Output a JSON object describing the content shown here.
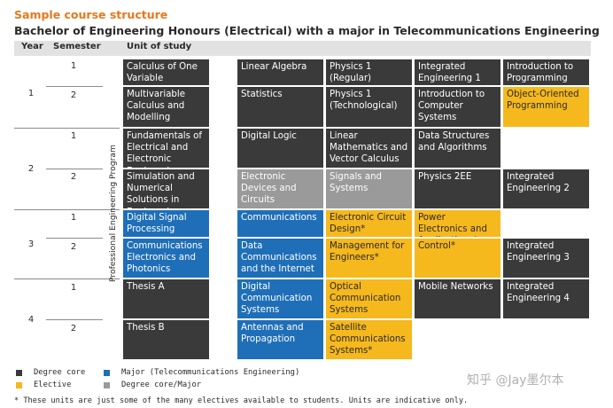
{
  "heading": "Sample course structure",
  "title": "Bachelor of Engineering Honours (Electrical) with a major in Telecommunications Engineering",
  "columns": {
    "year": "Year",
    "semester": "Semester",
    "unit": "Unit of study"
  },
  "years": [
    "1",
    "2",
    "3",
    "4"
  ],
  "semesters": [
    "1",
    "2",
    "1",
    "2",
    "1",
    "2",
    "1",
    "2"
  ],
  "side_label": "Professional Engineering Program",
  "colors": {
    "core": "#3a3a3a",
    "major": "#1f6fb8",
    "elective": "#f5b81d",
    "core_major": "#9a9a9a",
    "accent": "#e8771b"
  },
  "grid": [
    [
      {
        "text": "Calculus of One Variable",
        "type": "core"
      },
      {
        "text": "Linear Algebra",
        "type": "core"
      },
      {
        "text": "Physics 1 (Regular)",
        "type": "core"
      },
      {
        "text": "Integrated Engineering 1",
        "type": "core"
      },
      {
        "text": "Introduction to Programming",
        "type": "core"
      }
    ],
    [
      {
        "text": "Multivariable Calculus and Modelling",
        "type": "core"
      },
      {
        "text": "Statistics",
        "type": "core"
      },
      {
        "text": "Physics 1 (Technological)",
        "type": "core"
      },
      {
        "text": "Introduction to Computer Systems",
        "type": "core"
      },
      {
        "text": "Object-Oriented Programming",
        "type": "elective"
      }
    ],
    [
      {
        "text": "Fundamentals of Electrical and Electronic Engineering",
        "type": "core"
      },
      {
        "text": "Digital Logic",
        "type": "core"
      },
      {
        "text": "Linear Mathematics and Vector Calculus",
        "type": "core"
      },
      {
        "text": "Data Structures and Algorithms",
        "type": "core"
      },
      null
    ],
    [
      {
        "text": "Simulation and Numerical Solutions in Engineering",
        "type": "core"
      },
      {
        "text": "Electronic Devices and Circuits",
        "type": "core_major"
      },
      {
        "text": "Signals and Systems",
        "type": "core_major"
      },
      {
        "text": "Physics 2EE",
        "type": "core"
      },
      {
        "text": "Integrated Engineering 2",
        "type": "core"
      }
    ],
    [
      {
        "text": "Digital Signal Processing",
        "type": "major"
      },
      {
        "text": "Communications",
        "type": "major"
      },
      {
        "text": "Electronic Circuit Design*",
        "type": "elective"
      },
      {
        "text": "Power Electronics and Applications*",
        "type": "elective"
      },
      null
    ],
    [
      {
        "text": "Communications Electronics and Photonics",
        "type": "major"
      },
      {
        "text": "Data Communications and the Internet",
        "type": "major"
      },
      {
        "text": "Management for Engineers*",
        "type": "elective"
      },
      {
        "text": "Control*",
        "type": "elective"
      },
      {
        "text": "Integrated Engineering 3",
        "type": "core"
      }
    ],
    [
      {
        "text": "Thesis A",
        "type": "core"
      },
      {
        "text": "Digital Communication Systems",
        "type": "major"
      },
      {
        "text": "Optical Communication Systems",
        "type": "elective"
      },
      {
        "text": "Mobile Networks",
        "type": "core"
      },
      {
        "text": "Integrated Engineering 4",
        "type": "core"
      }
    ],
    [
      {
        "text": "Thesis B",
        "type": "core"
      },
      {
        "text": "Antennas and Propagation",
        "type": "major"
      },
      {
        "text": "Satellite Communications Systems*",
        "type": "elective"
      },
      null,
      null
    ]
  ],
  "legend": {
    "core": "Degree core",
    "major": "Major (Telecommunications Engineering)",
    "elective": "Elective",
    "core_major": "Degree core/Major"
  },
  "footnote": "* These units are just some of the many electives available to students. Units are indicative only.",
  "watermark": "知乎 @Jay墨尔本"
}
